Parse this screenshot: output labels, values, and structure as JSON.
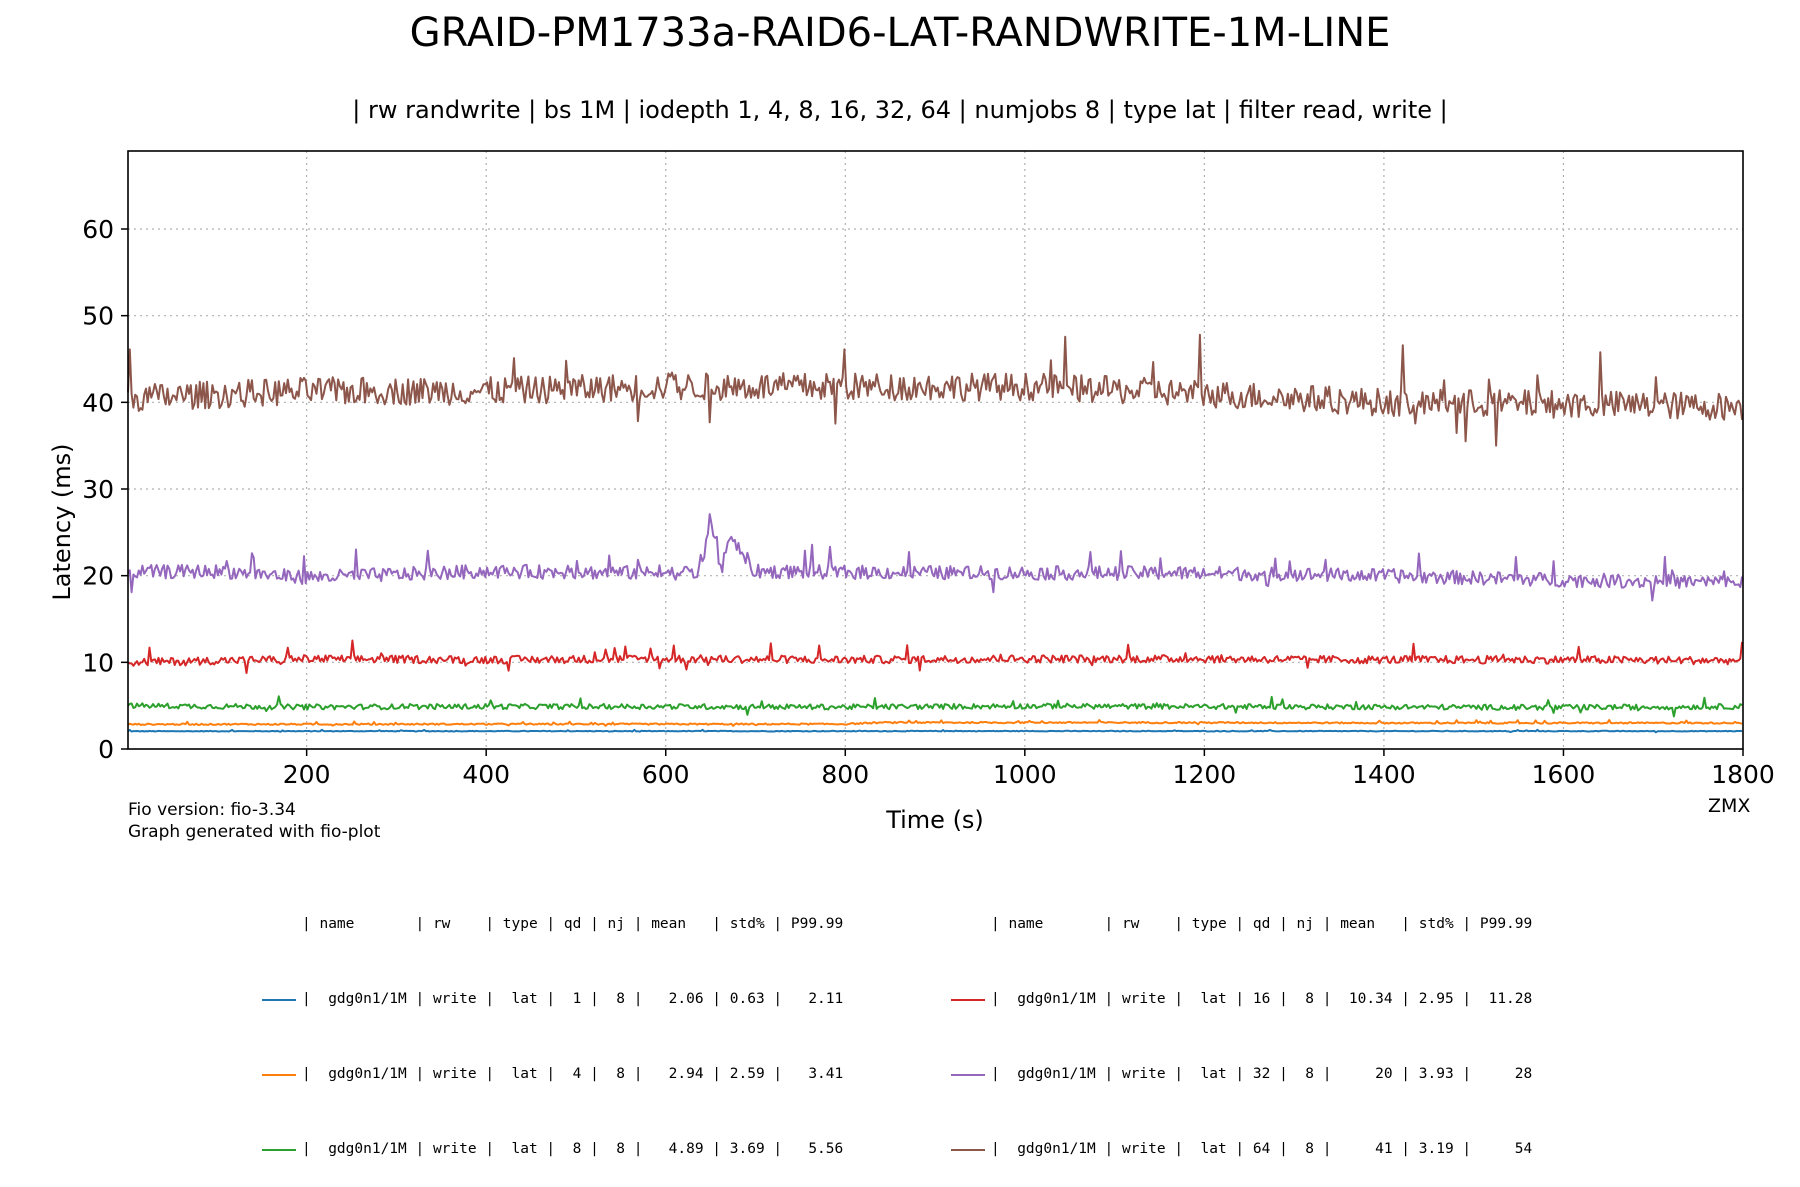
{
  "title": "GRAID-PM1733a-RAID6-LAT-RANDWRITE-1M-LINE",
  "subtitle": "| rw randwrite | bs 1M | iodepth 1, 4, 8, 16, 32, 64 | numjobs 8 | type lat | filter read, write |",
  "footnote": {
    "line1": "Fio version: fio-3.34",
    "line2": "Graph generated with fio-plot"
  },
  "watermark": "ZMX",
  "legend": {
    "header": "| name       | rw    | type | qd | nj | mean   | std% | P99.99",
    "rows": [
      {
        "text": "|  gdg0n1/1M | write |  lat |  1 |  8 |   2.06 | 0.63 |   2.11",
        "color": "#1f77b4"
      },
      {
        "text": "|  gdg0n1/1M | write |  lat |  4 |  8 |   2.94 | 2.59 |   3.41",
        "color": "#ff7f0e"
      },
      {
        "text": "|  gdg0n1/1M | write |  lat |  8 |  8 |   4.89 | 3.69 |   5.56",
        "color": "#2ca02c"
      },
      {
        "text": "|  gdg0n1/1M | write |  lat | 16 |  8 |  10.34 | 2.95 |  11.28",
        "color": "#d62728"
      },
      {
        "text": "|  gdg0n1/1M | write |  lat | 32 |  8 |     20 | 3.93 |     28",
        "color": "#9467bd"
      },
      {
        "text": "|  gdg0n1/1M | write |  lat | 64 |  8 |     41 | 3.19 |     54",
        "color": "#8c564b"
      }
    ]
  },
  "chart_data": {
    "type": "line",
    "title": "GRAID-PM1733a-RAID6-LAT-RANDWRITE-1M-LINE",
    "xlabel": "Time (s)",
    "ylabel": "Latency (ms)",
    "xlim": [
      1,
      1800
    ],
    "ylim": [
      0,
      69
    ],
    "xticks": [
      200,
      400,
      600,
      800,
      1000,
      1200,
      1400,
      1600,
      1800
    ],
    "yticks": [
      0,
      10,
      20,
      30,
      40,
      50,
      60
    ],
    "grid": true,
    "series": [
      {
        "name": "gdg0n1/1M write qd 1",
        "color": "#1f77b4",
        "mean": 2.06,
        "noise": 0.04,
        "x": [
          1,
          200,
          400,
          600,
          800,
          1000,
          1200,
          1400,
          1600,
          1800
        ],
        "values": [
          2.05,
          2.06,
          2.06,
          2.06,
          2.06,
          2.07,
          2.06,
          2.06,
          2.06,
          2.06
        ]
      },
      {
        "name": "gdg0n1/1M write qd 4",
        "color": "#ff7f0e",
        "mean": 2.94,
        "noise": 0.08,
        "x": [
          1,
          200,
          400,
          600,
          800,
          840,
          1000,
          1200,
          1400,
          1600,
          1800
        ],
        "values": [
          2.85,
          2.86,
          2.87,
          2.87,
          2.88,
          3.05,
          3.05,
          3.05,
          3.0,
          3.0,
          3.0
        ]
      },
      {
        "name": "gdg0n1/1M write qd 8",
        "color": "#2ca02c",
        "mean": 4.89,
        "noise": 0.3,
        "x": [
          1,
          200,
          400,
          600,
          800,
          1000,
          1200,
          1400,
          1600,
          1800
        ],
        "values": [
          5.0,
          4.85,
          4.9,
          4.9,
          4.85,
          4.95,
          4.9,
          4.85,
          4.8,
          4.9
        ]
      },
      {
        "name": "gdg0n1/1M write qd 16",
        "color": "#d62728",
        "mean": 10.34,
        "noise": 0.45,
        "x": [
          1,
          200,
          400,
          600,
          800,
          1000,
          1200,
          1400,
          1600,
          1800
        ],
        "values": [
          10.0,
          10.4,
          10.3,
          10.4,
          10.3,
          10.4,
          10.4,
          10.3,
          10.3,
          10.2
        ]
      },
      {
        "name": "gdg0n1/1M write qd 32",
        "color": "#9467bd",
        "mean": 20,
        "noise": 0.8,
        "x": [
          1,
          100,
          200,
          400,
          600,
          640,
          650,
          660,
          670,
          680,
          700,
          800,
          1000,
          1200,
          1400,
          1600,
          1800
        ],
        "values": [
          20.4,
          20.5,
          19.8,
          20.5,
          20.3,
          20.4,
          27.0,
          21.0,
          24.0,
          23.5,
          20.5,
          20.4,
          20.3,
          20.3,
          20.0,
          19.5,
          19.2
        ]
      },
      {
        "name": "gdg0n1/1M write qd 64",
        "color": "#8c564b",
        "mean": 41,
        "noise": 1.6,
        "x": [
          1,
          200,
          400,
          600,
          800,
          1000,
          1200,
          1400,
          1600,
          1800
        ],
        "values": [
          40.5,
          41.3,
          41.3,
          41.8,
          41.8,
          41.8,
          41.0,
          40.0,
          39.8,
          39.5
        ]
      }
    ]
  }
}
